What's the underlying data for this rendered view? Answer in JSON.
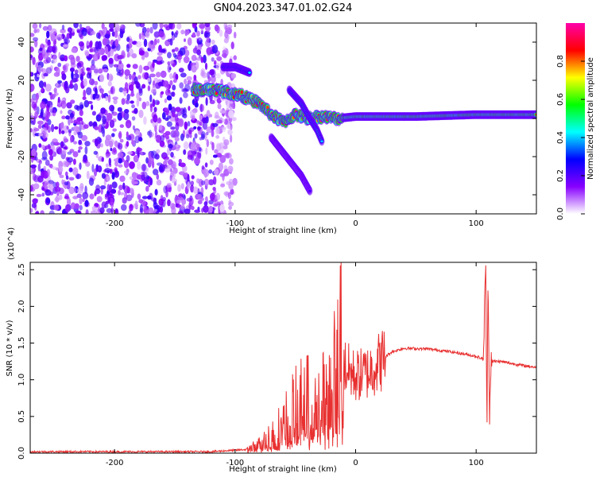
{
  "title": "GN04.2023.347.01.02.G24",
  "chart_data": [
    {
      "type": "heatmap",
      "title": "GN04.2023.347.01.02.G24",
      "xlabel": "Height of straight line (km)",
      "ylabel": "Frequency (Hz)",
      "xlim": [
        -270,
        150
      ],
      "ylim": [
        -50,
        50
      ],
      "xticks": [
        "-200",
        "-100",
        "0",
        "100"
      ],
      "xtick_values": [
        -200,
        -100,
        0,
        100
      ],
      "yticks": [
        "-40",
        "-20",
        "0",
        "20",
        "40"
      ],
      "ytick_values": [
        -40,
        -20,
        0,
        20,
        40
      ],
      "colorbar": {
        "label": "Normalized spectral amplitude",
        "range": [
          0,
          1
        ],
        "ticks": [
          "0.0",
          "0.2",
          "0.4",
          "0.6",
          "0.8"
        ],
        "tick_values": [
          0.0,
          0.2,
          0.4,
          0.6,
          0.8
        ],
        "colors": [
          "#ffffff",
          "#8800ff",
          "#0000ff",
          "#00ffff",
          "#00ff00",
          "#ffff00",
          "#ff0000",
          "#ff00aa"
        ]
      },
      "features": [
        {
          "name": "noise",
          "x_range": [
            -270,
            -100
          ],
          "y_range": [
            -50,
            50
          ],
          "amplitude": 0.15
        },
        {
          "name": "upper-trace",
          "points": [
            [
              -110,
              27
            ],
            [
              -100,
              27
            ],
            [
              -88,
              24
            ]
          ],
          "amplitude": 0.4
        },
        {
          "name": "main-trace",
          "points": [
            [
              -135,
              15
            ],
            [
              -115,
              15
            ],
            [
              -95,
              12
            ],
            [
              -80,
              8
            ],
            [
              -70,
              2
            ],
            [
              -60,
              -2
            ],
            [
              -50,
              2
            ],
            [
              -40,
              0
            ],
            [
              -30,
              1
            ],
            [
              -15,
              0
            ],
            [
              0,
              1
            ],
            [
              50,
              1
            ],
            [
              100,
              2
            ],
            [
              150,
              2
            ]
          ],
          "amplitude": 0.85
        },
        {
          "name": "side-trace",
          "points": [
            [
              -55,
              15
            ],
            [
              -45,
              8
            ],
            [
              -38,
              0
            ],
            [
              -32,
              -6
            ],
            [
              -28,
              -12
            ]
          ],
          "amplitude": 0.45
        },
        {
          "name": "descending-tail",
          "points": [
            [
              -70,
              -10
            ],
            [
              -55,
              -22
            ],
            [
              -45,
              -30
            ],
            [
              -38,
              -38
            ]
          ],
          "amplitude": 0.2
        }
      ]
    },
    {
      "type": "line",
      "xlabel": "Height of straight line (km)",
      "ylabel": "SNR (10 * v/v)",
      "multiplier": "(x10^4)",
      "xlim": [
        -270,
        150
      ],
      "ylim": [
        0,
        2.6
      ],
      "xticks": [
        "-200",
        "-100",
        "0",
        "100"
      ],
      "xtick_values": [
        -200,
        -100,
        0,
        100
      ],
      "yticks": [
        "0.0",
        "0.5",
        "1.0",
        "1.5",
        "2.0",
        "2.5"
      ],
      "ytick_values": [
        0.0,
        0.5,
        1.0,
        1.5,
        2.0,
        2.5
      ],
      "series": [
        {
          "color": "#e83030",
          "x": [
            -270,
            -200,
            -120,
            -90,
            -80,
            -70,
            -60,
            -55,
            -50,
            -45,
            -40,
            -35,
            -30,
            -25,
            -20,
            -15,
            -12,
            -10,
            -5,
            0,
            10,
            20,
            30,
            40,
            60,
            80,
            100,
            106,
            108,
            109,
            110,
            111,
            112,
            114,
            120,
            140,
            150
          ],
          "y": [
            0.02,
            0.02,
            0.02,
            0.05,
            0.12,
            0.25,
            0.4,
            0.55,
            0.62,
            0.7,
            0.72,
            0.78,
            0.8,
            0.9,
            1.0,
            1.1,
            1.75,
            1.2,
            1.1,
            1.05,
            1.1,
            1.25,
            1.38,
            1.43,
            1.42,
            1.38,
            1.32,
            1.28,
            2.5,
            0.3,
            2.55,
            0.5,
            1.3,
            1.25,
            1.25,
            1.19,
            1.17
          ]
        }
      ]
    }
  ]
}
